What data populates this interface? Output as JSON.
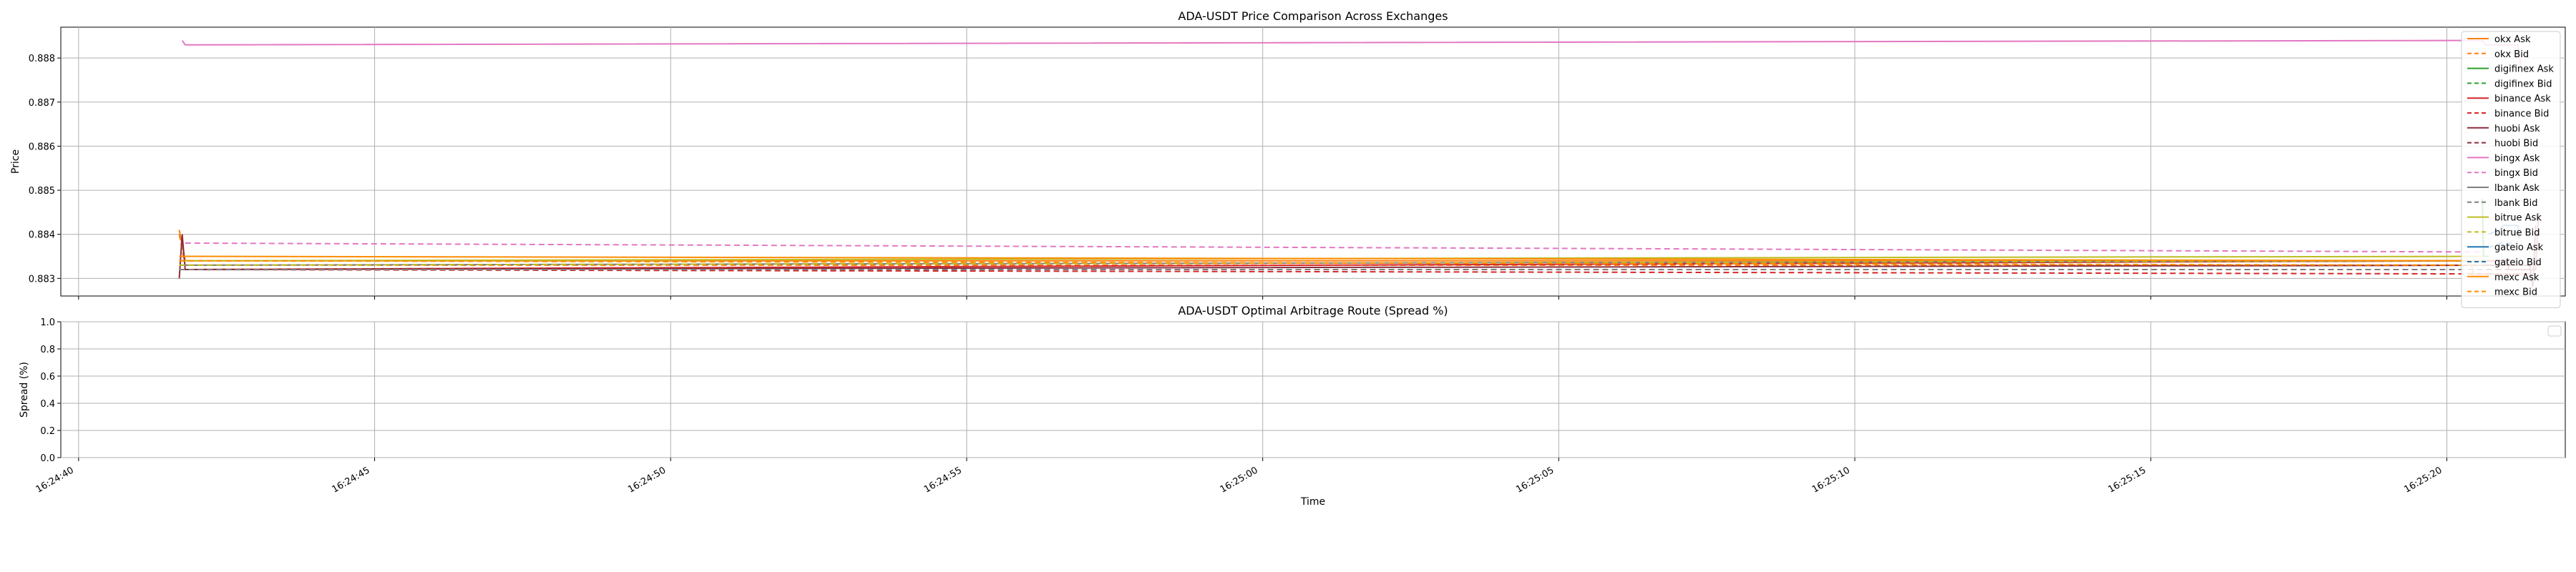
{
  "chart_data": [
    {
      "type": "line",
      "title": "ADA-USDT Price Comparison Across Exchanges",
      "xlabel": "",
      "ylabel": "Price",
      "ylim": [
        0.8826,
        0.8887
      ],
      "yticks": [
        0.883,
        0.884,
        0.885,
        0.886,
        0.887,
        0.888
      ],
      "ytick_labels": [
        "0.883",
        "0.884",
        "0.885",
        "0.886",
        "0.887",
        "0.888"
      ],
      "grid": true,
      "legend": "upper right",
      "series": [
        {
          "name": "okx Ask",
          "color": "#ff7f0e",
          "dash": "solid",
          "points": [
            [
              41.7,
              0.8841
            ],
            [
              41.8,
              0.8834
            ],
            [
              80.4,
              0.8834
            ],
            [
              80.45,
              0.8831
            ],
            [
              81.4,
              0.8831
            ]
          ]
        },
        {
          "name": "okx Bid",
          "color": "#ff7f0e",
          "dash": "dashed",
          "points": [
            [
              41.7,
              0.884
            ],
            [
              41.8,
              0.8833
            ],
            [
              80.4,
              0.8833
            ]
          ]
        },
        {
          "name": "digifinex Ask",
          "color": "#2ca02c",
          "dash": "solid",
          "points": [
            [
              80.6,
              0.8848
            ],
            [
              80.62,
              0.8835
            ],
            [
              80.7,
              0.8835
            ]
          ]
        },
        {
          "name": "digifinex Bid",
          "color": "#2ca02c",
          "dash": "dashed",
          "points": [
            [
              80.6,
              0.8847
            ],
            [
              80.62,
              0.8834
            ]
          ]
        },
        {
          "name": "binance Ask",
          "color": "#d62728",
          "dash": "solid",
          "points": [
            [
              41.7,
              0.8832
            ],
            [
              80.55,
              0.8834
            ],
            [
              81.0,
              0.8834
            ],
            [
              81.05,
              0.8832
            ],
            [
              81.5,
              0.8832
            ],
            [
              81.55,
              0.8845
            ]
          ]
        },
        {
          "name": "binance Bid",
          "color": "#d62728",
          "dash": "dashed",
          "points": [
            [
              41.7,
              0.8832
            ],
            [
              81.5,
              0.8831
            ]
          ]
        },
        {
          "name": "huobi Ask",
          "color": "#8c2d3c",
          "dash": "solid",
          "points": [
            [
              41.7,
              0.883
            ],
            [
              41.75,
              0.884
            ],
            [
              41.8,
              0.8832
            ],
            [
              81.4,
              0.8833
            ],
            [
              81.45,
              0.8828
            ],
            [
              81.5,
              0.8842
            ]
          ]
        },
        {
          "name": "huobi Bid",
          "color": "#8c2d3c",
          "dash": "dashed",
          "points": [
            [
              41.7,
              0.8832
            ],
            [
              81.5,
              0.8832
            ]
          ]
        },
        {
          "name": "bingx Ask",
          "color": "#e377c2",
          "dash": "solid",
          "points": [
            [
              41.75,
              0.8884
            ],
            [
              41.8,
              0.8883
            ],
            [
              80.6,
              0.8884
            ],
            [
              80.65,
              0.8883
            ],
            [
              81.2,
              0.8883
            ],
            [
              81.25,
              0.8878
            ]
          ]
        },
        {
          "name": "bingx Bid",
          "color": "#e377c2",
          "dash": "dashed",
          "points": [
            [
              41.8,
              0.8838
            ],
            [
              80.6,
              0.8836
            ]
          ]
        },
        {
          "name": "lbank Ask",
          "color": "#7f7f7f",
          "dash": "solid",
          "points": [
            [
              41.7,
              0.8833
            ],
            [
              80.6,
              0.8834
            ]
          ]
        },
        {
          "name": "lbank Bid",
          "color": "#7f7f7f",
          "dash": "dashed",
          "points": [
            [
              41.7,
              0.8832
            ],
            [
              80.6,
              0.8832
            ]
          ]
        },
        {
          "name": "bitrue Ask",
          "color": "#bcbd22",
          "dash": "solid",
          "points": [
            [
              41.7,
              0.8834
            ],
            [
              80.6,
              0.8835
            ]
          ]
        },
        {
          "name": "bitrue Bid",
          "color": "#bcbd22",
          "dash": "dashed",
          "points": [
            [
              41.7,
              0.8833
            ],
            [
              80.6,
              0.8834
            ]
          ]
        },
        {
          "name": "gateio Ask",
          "color": "#1f77b4",
          "dash": "solid",
          "points": [
            [
              80.7,
              0.884
            ],
            [
              80.9,
              0.8841
            ],
            [
              80.95,
              0.8842
            ],
            [
              81.2,
              0.8842
            ],
            [
              81.22,
              0.8839
            ]
          ]
        },
        {
          "name": "gateio Bid",
          "color": "#1f77b4",
          "dash": "dashed",
          "points": [
            [
              80.7,
              0.8837
            ],
            [
              80.9,
              0.8838
            ],
            [
              80.95,
              0.8838
            ],
            [
              81.2,
              0.8838
            ]
          ]
        },
        {
          "name": "mexc Ask",
          "color": "#ff8c00",
          "dash": "solid",
          "points": [
            [
              41.7,
              0.8835
            ],
            [
              80.6,
              0.8834
            ]
          ]
        },
        {
          "name": "mexc Bid",
          "color": "#ff8c00",
          "dash": "dashed",
          "points": [
            [
              41.7,
              0.8834
            ],
            [
              80.6,
              0.8833
            ]
          ]
        }
      ]
    },
    {
      "type": "line",
      "title": "ADA-USDT Optimal Arbitrage Route (Spread %)",
      "xlabel": "Time",
      "ylabel": "Spread (%)",
      "ylim": [
        0.0,
        1.0
      ],
      "yticks": [
        0.0,
        0.2,
        0.4,
        0.6,
        0.8,
        1.0
      ],
      "ytick_labels": [
        "0.0",
        "0.2",
        "0.4",
        "0.6",
        "0.8",
        "1.0"
      ],
      "xticks": [
        40,
        45,
        50,
        55,
        60,
        65,
        70,
        75,
        80
      ],
      "xtick_labels": [
        "16:24:40",
        "16:24:45",
        "16:24:50",
        "16:24:55",
        "16:25:00",
        "16:25:05",
        "16:25:10",
        "16:25:15",
        "16:25:20"
      ],
      "grid": true,
      "legend": "upper right",
      "series": []
    }
  ]
}
